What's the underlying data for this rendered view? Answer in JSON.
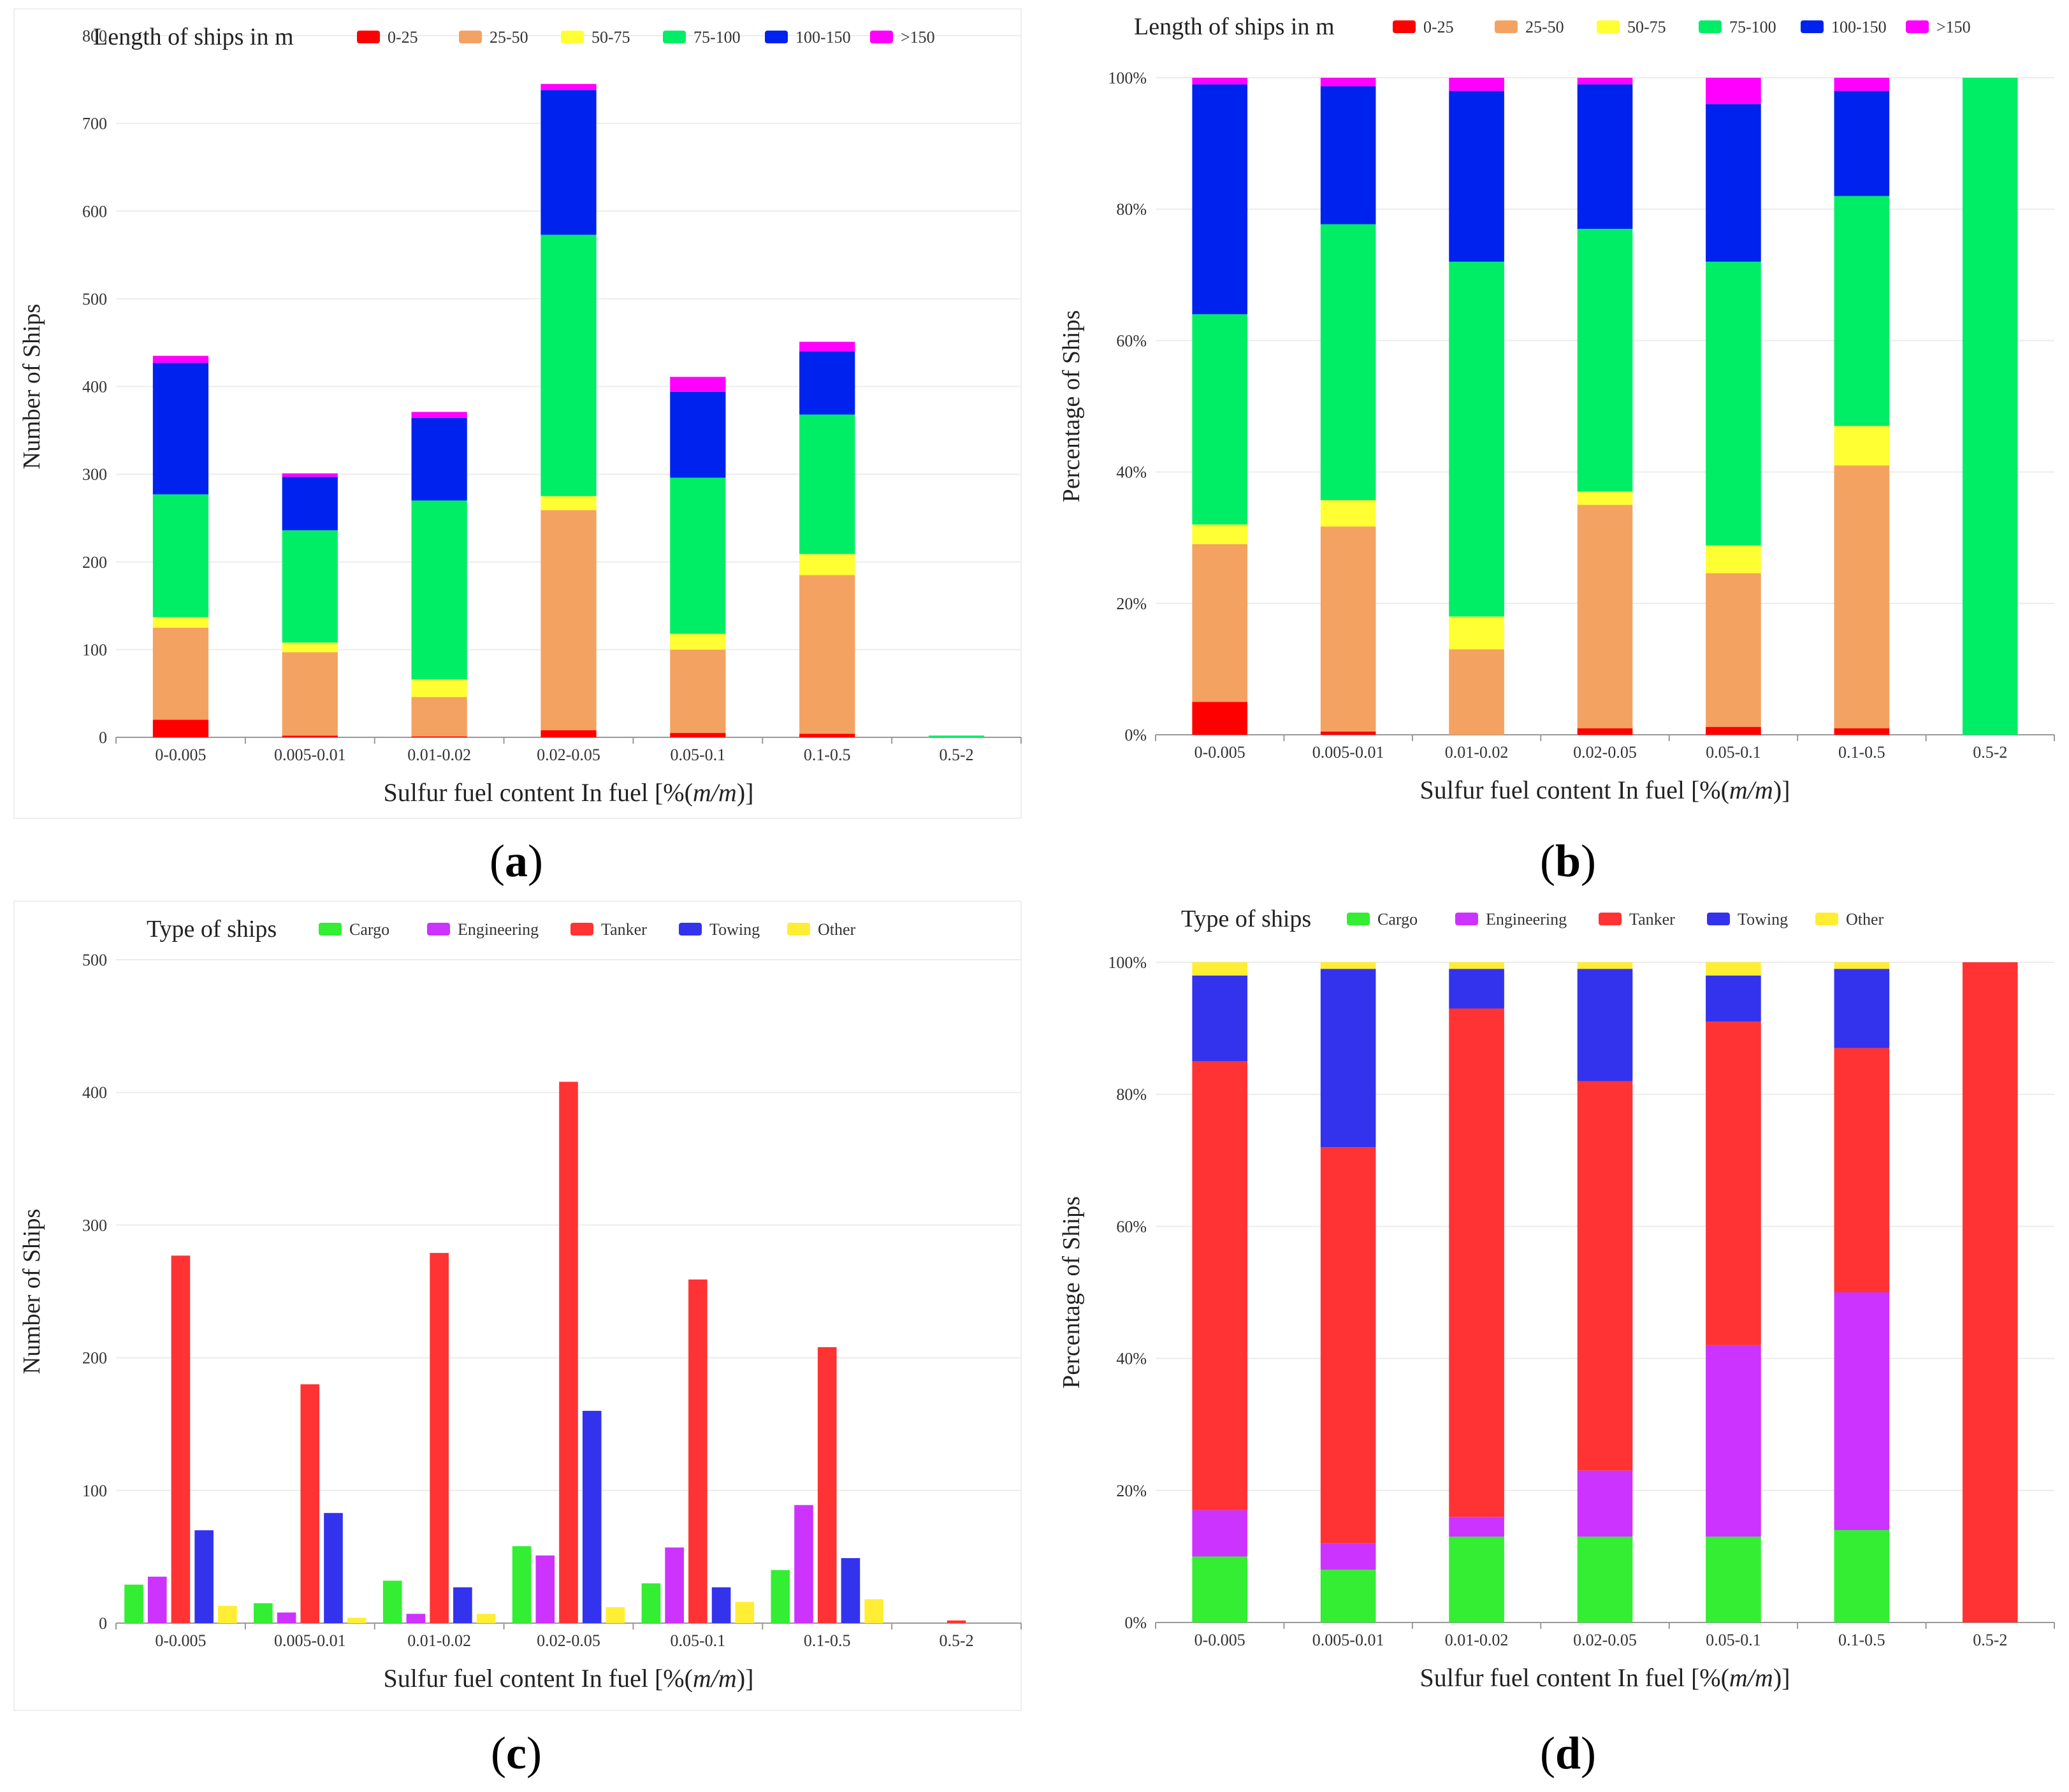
{
  "captions": [
    "a",
    "b",
    "c",
    "d"
  ],
  "chart_data": [
    {
      "id": "a",
      "type": "bar",
      "stacked": true,
      "legend_title": "Length of ships in m",
      "categories": [
        "0-0.005",
        "0.005-0.01",
        "0.01-0.02",
        "0.02-0.05",
        "0.05-0.1",
        "0.1-0.5",
        "0.5-2"
      ],
      "series": [
        {
          "name": "0-25",
          "color": "#ff0000",
          "values": [
            20,
            2,
            1,
            8,
            5,
            4,
            0
          ]
        },
        {
          "name": "25-50",
          "color": "#f4a261",
          "values": [
            105,
            95,
            45,
            251,
            95,
            181,
            0
          ]
        },
        {
          "name": "50-75",
          "color": "#ffff33",
          "values": [
            12,
            11,
            20,
            16,
            18,
            24,
            0
          ]
        },
        {
          "name": "75-100",
          "color": "#00ee66",
          "values": [
            140,
            128,
            204,
            298,
            178,
            159,
            2
          ]
        },
        {
          "name": "100-150",
          "color": "#0022ee",
          "values": [
            150,
            61,
            94,
            165,
            98,
            72,
            0
          ]
        },
        {
          "name": ">150",
          "color": "#ff00ff",
          "values": [
            8,
            4,
            7,
            7,
            17,
            11,
            0
          ]
        }
      ],
      "xlabel_prefix": "Sulfur fuel content In fuel [%(",
      "xlabel_italic": "m/m",
      "xlabel_suffix": ")]",
      "ylabel": "Number of Ships",
      "ylim": [
        0,
        800
      ],
      "yticks": [
        "0",
        "100",
        "200",
        "300",
        "400",
        "500",
        "600",
        "700",
        "800"
      ]
    },
    {
      "id": "b",
      "type": "bar",
      "stacked": true,
      "legend_title": "Length of ships in m",
      "categories": [
        "0-0.005",
        "0.005-0.01",
        "0.01-0.02",
        "0.02-0.05",
        "0.05-0.1",
        "0.1-0.5",
        "0.5-2"
      ],
      "series": [
        {
          "name": "0-25",
          "color": "#ff0000",
          "values": [
            5,
            0.5,
            0,
            1,
            1.2,
            1,
            0
          ]
        },
        {
          "name": "25-50",
          "color": "#f4a261",
          "values": [
            24,
            31.2,
            13,
            34,
            23.4,
            40,
            0
          ]
        },
        {
          "name": "50-75",
          "color": "#ffff33",
          "values": [
            3,
            4,
            5,
            2,
            4.2,
            6,
            0
          ]
        },
        {
          "name": "75-100",
          "color": "#00ee66",
          "values": [
            32,
            42,
            54,
            40,
            43.2,
            35,
            100
          ]
        },
        {
          "name": "100-150",
          "color": "#0022ee",
          "values": [
            35,
            21,
            26,
            22,
            24,
            16,
            0
          ]
        },
        {
          "name": ">150",
          "color": "#ff00ff",
          "values": [
            1,
            1.3,
            2,
            1,
            4,
            2,
            0
          ]
        }
      ],
      "xlabel_prefix": "Sulfur fuel content In fuel [%(",
      "xlabel_italic": "m/m",
      "xlabel_suffix": ")]",
      "ylabel": "Percentage of Ships",
      "ylim": [
        0,
        100
      ],
      "yticks": [
        "0%",
        "20%",
        "40%",
        "60%",
        "80%",
        "100%"
      ]
    },
    {
      "id": "c",
      "type": "bar",
      "stacked": false,
      "legend_title": "Type of ships",
      "categories": [
        "0-0.005",
        "0.005-0.01",
        "0.01-0.02",
        "0.02-0.05",
        "0.05-0.1",
        "0.1-0.5",
        "0.5-2"
      ],
      "series": [
        {
          "name": "Cargo",
          "color": "#33ee33",
          "values": [
            29,
            15,
            32,
            58,
            30,
            40,
            0
          ]
        },
        {
          "name": "Engineering",
          "color": "#cc33ff",
          "values": [
            35,
            8,
            7,
            51,
            57,
            89,
            0
          ]
        },
        {
          "name": "Tanker",
          "color": "#ff3333",
          "values": [
            277,
            180,
            279,
            408,
            259,
            208,
            2
          ]
        },
        {
          "name": "Towing",
          "color": "#3333ee",
          "values": [
            70,
            83,
            27,
            160,
            27,
            49,
            0
          ]
        },
        {
          "name": "Other",
          "color": "#ffee33",
          "values": [
            13,
            4,
            7,
            12,
            16,
            18,
            0
          ]
        }
      ],
      "xlabel_prefix": "Sulfur fuel content In fuel [%(",
      "xlabel_italic": "m/m",
      "xlabel_suffix": ")]",
      "ylabel": "Number of Ships",
      "ylim": [
        0,
        500
      ],
      "yticks": [
        "0",
        "100",
        "200",
        "300",
        "400",
        "500"
      ]
    },
    {
      "id": "d",
      "type": "bar",
      "stacked": true,
      "legend_title": "Type of ships",
      "categories": [
        "0-0.005",
        "0.005-0.01",
        "0.01-0.02",
        "0.02-0.05",
        "0.05-0.1",
        "0.1-0.5",
        "0.5-2"
      ],
      "series": [
        {
          "name": "Cargo",
          "color": "#33ee33",
          "values": [
            10,
            8,
            13,
            13,
            13,
            14,
            0
          ]
        },
        {
          "name": "Engineering",
          "color": "#cc33ff",
          "values": [
            7,
            4,
            3,
            10,
            29,
            36,
            0
          ]
        },
        {
          "name": "Tanker",
          "color": "#ff3333",
          "values": [
            68,
            60,
            77,
            59,
            49,
            37,
            100
          ]
        },
        {
          "name": "Towing",
          "color": "#3333ee",
          "values": [
            13,
            27,
            6,
            17,
            7,
            12,
            0
          ]
        },
        {
          "name": "Other",
          "color": "#ffee33",
          "values": [
            2,
            1,
            1,
            1,
            2,
            1,
            0
          ]
        }
      ],
      "xlabel_prefix": "Sulfur fuel content In fuel [%(",
      "xlabel_italic": "m/m",
      "xlabel_suffix": ")]",
      "ylabel": "Percentage of Ships",
      "ylim": [
        0,
        100
      ],
      "yticks": [
        "0%",
        "20%",
        "40%",
        "60%",
        "80%",
        "100%"
      ]
    }
  ]
}
